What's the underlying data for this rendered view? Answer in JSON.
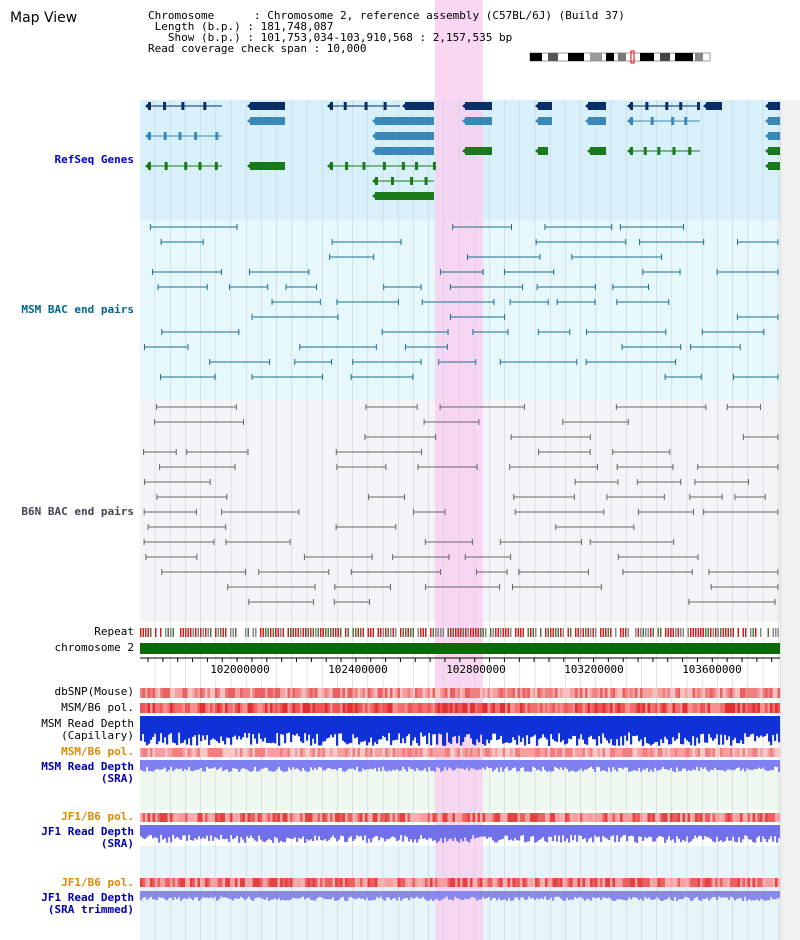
{
  "map_title": "Map View",
  "info": {
    "chromosome": "Chromosome      : Chromosome 2, reference assembly (C57BL/6J) (Build 37)",
    "length": " Length (b.p.) : 181,748,087",
    "show": "   Show (b.p.) : 101,753,034-103,910,568 : 2,157,535 bp",
    "read_span": "Read coverage check span : 10,000"
  },
  "track_labels": {
    "refseq": "RefSeq Genes",
    "msm_bac": "MSM BAC end pairs",
    "b6n_bac": "B6N BAC end pairs",
    "repeat": "Repeat",
    "chromosome": "chromosome 2",
    "dbsnp": "dbSNP(Mouse)",
    "msm_b6_pol": "MSM/B6 pol.",
    "msm_depth_cap_1": "MSM Read Depth",
    "msm_depth_cap_2": "(Capillary)",
    "msm_b6_pol_2": "MSM/B6 pol.",
    "msm_depth_sra_1": "MSM Read Depth",
    "msm_depth_sra_2": "(SRA)",
    "jf1_b6_pol": "JF1/B6 pol.",
    "jf1_depth_sra_1": "JF1 Read Depth",
    "jf1_depth_sra_2": "(SRA)",
    "jf1_b6_pol_2": "JF1/B6 pol.",
    "jf1_trim_1": "JF1 Read Depth",
    "jf1_trim_2": "(SRA trimmed)"
  },
  "axis_ticks": [
    "102000000",
    "102400000",
    "102800000",
    "103200000",
    "103600000"
  ],
  "colors": {
    "refseq_label": "#0000cc",
    "msm_label": "#006688",
    "b6n_label": "#444455",
    "pol_label": "#dd8800",
    "depth_label": "#0000aa",
    "highlight": "#ff99ee"
  }
}
